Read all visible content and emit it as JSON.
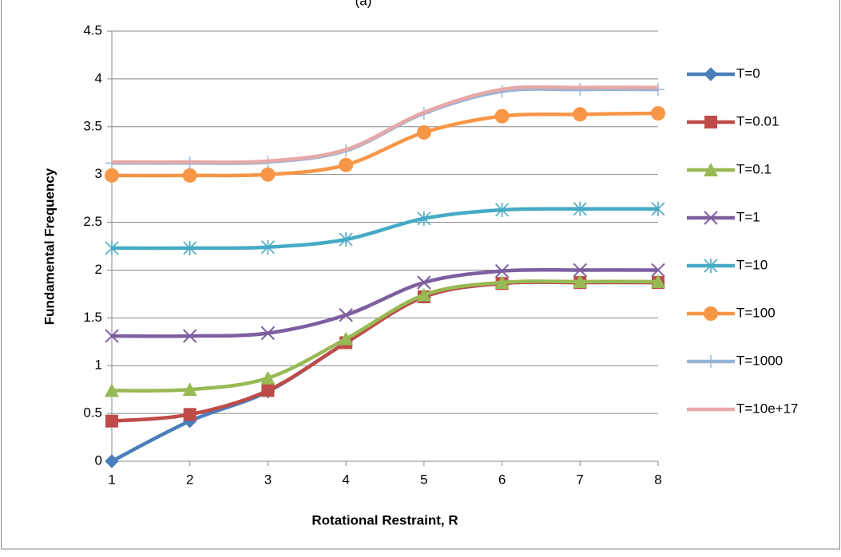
{
  "chart_data": {
    "type": "line",
    "title": "(a)",
    "x_label": "Rotational Restraint, R",
    "y_label": "Fundamental Frequency",
    "x": [
      1,
      2,
      3,
      4,
      5,
      6,
      7,
      8
    ],
    "xlim": [
      1,
      8
    ],
    "xticks": [
      1,
      2,
      3,
      4,
      5,
      6,
      7,
      8
    ],
    "ylim": [
      0,
      4.5
    ],
    "yticks": [
      0,
      0.5,
      1,
      1.5,
      2,
      2.5,
      3,
      3.5,
      4,
      4.5
    ],
    "grid": true,
    "smooth": true,
    "legend": "right",
    "series": [
      {
        "name": "T=0",
        "color": "#4a7ebb",
        "marker": "diamond",
        "values": [
          0,
          0.42,
          0.73,
          1.24,
          1.72,
          1.86,
          1.87,
          1.87
        ]
      },
      {
        "name": "T=0.01",
        "color": "#be4b48",
        "marker": "square",
        "values": [
          0.42,
          0.49,
          0.74,
          1.24,
          1.72,
          1.86,
          1.87,
          1.87
        ]
      },
      {
        "name": "T=0.1",
        "color": "#98b954",
        "marker": "triangle",
        "values": [
          0.74,
          0.75,
          0.87,
          1.28,
          1.74,
          1.87,
          1.88,
          1.88
        ]
      },
      {
        "name": "T=1",
        "color": "#7d5fa0",
        "marker": "x",
        "values": [
          1.31,
          1.31,
          1.34,
          1.53,
          1.87,
          1.99,
          2.0,
          2.0
        ]
      },
      {
        "name": "T=10",
        "color": "#46aac5",
        "marker": "star",
        "values": [
          2.23,
          2.23,
          2.24,
          2.32,
          2.54,
          2.63,
          2.64,
          2.64
        ]
      },
      {
        "name": "T=100",
        "color": "#f79646",
        "marker": "circle",
        "values": [
          2.99,
          2.99,
          3.0,
          3.1,
          3.44,
          3.61,
          3.63,
          3.64
        ]
      },
      {
        "name": "T=1000",
        "color": "#95b3d7",
        "marker": "plus",
        "values": [
          3.12,
          3.12,
          3.13,
          3.25,
          3.64,
          3.87,
          3.89,
          3.89
        ]
      },
      {
        "name": "T=10e+17",
        "color": "#e6a9a8",
        "values": [
          3.13,
          3.13,
          3.14,
          3.26,
          3.65,
          3.89,
          3.91,
          3.91
        ]
      }
    ]
  }
}
